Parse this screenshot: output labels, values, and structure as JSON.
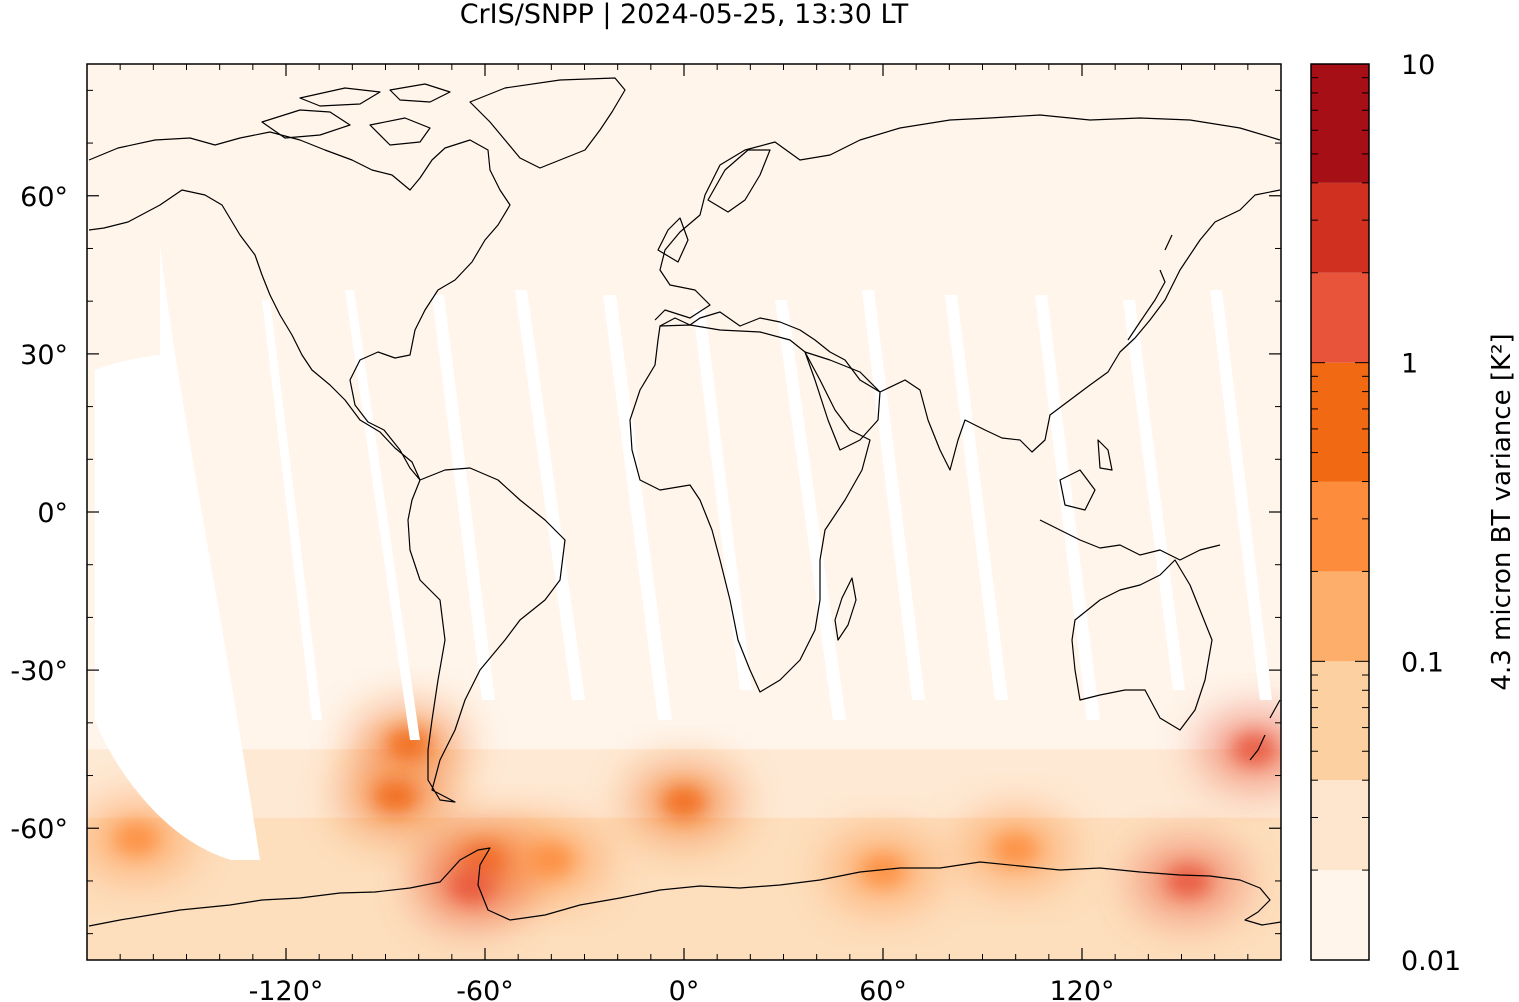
{
  "chart_data": {
    "type": "heatmap",
    "title": "CrIS/SNPP | 2024-05-25, 13:30 LT",
    "projection": "equirectangular",
    "xlim": [
      -180,
      180
    ],
    "ylim": [
      -85,
      85
    ],
    "x_ticks": [
      {
        "value": -120,
        "label": "-120°"
      },
      {
        "value": -60,
        "label": "-60°"
      },
      {
        "value": 0,
        "label": "0°"
      },
      {
        "value": 60,
        "label": "60°"
      },
      {
        "value": 120,
        "label": "120°"
      }
    ],
    "y_ticks": [
      {
        "value": 60,
        "label": "60°"
      },
      {
        "value": 30,
        "label": "30°"
      },
      {
        "value": 0,
        "label": "0°"
      },
      {
        "value": -30,
        "label": "-30°"
      },
      {
        "value": -60,
        "label": "-60°"
      }
    ],
    "colorbar": {
      "label": "4.3 micron BT variance [K²]",
      "scale": "log",
      "range": [
        0.01,
        10
      ],
      "tick_labels": [
        {
          "value": 10,
          "label": "10"
        },
        {
          "value": 1,
          "label": "1"
        },
        {
          "value": 0.1,
          "label": "0.1"
        },
        {
          "value": 0.01,
          "label": "0.01"
        }
      ],
      "levels": [
        0.01,
        0.02,
        0.04,
        0.1,
        0.2,
        0.4,
        1,
        2,
        4,
        10
      ],
      "colors": [
        "#fff5eb",
        "#fee6ce",
        "#fdd0a2",
        "#fdae6b",
        "#fd8d3c",
        "#f16913",
        "#e8543a",
        "#d03020",
        "#a50f15",
        "#8b0000"
      ]
    },
    "background_level": 0.02,
    "enhanced_regions": [
      {
        "lon": -83,
        "lat": -44,
        "value": 0.6
      },
      {
        "lon": -87,
        "lat": -54,
        "value": 0.8
      },
      {
        "lon": -60,
        "lat": -66,
        "value": 0.6
      },
      {
        "lon": -64,
        "lat": -71,
        "value": 1.0
      },
      {
        "lon": -40,
        "lat": -66,
        "value": 0.3
      },
      {
        "lon": 0,
        "lat": -55,
        "value": 0.8
      },
      {
        "lon": 152,
        "lat": -70,
        "value": 1.0
      },
      {
        "lon": 172,
        "lat": -45,
        "value": 1.0
      },
      {
        "lon": -165,
        "lat": -62,
        "value": 0.2
      },
      {
        "lon": 100,
        "lat": -64,
        "value": 0.2
      },
      {
        "lon": 60,
        "lat": -68,
        "value": 0.2
      }
    ]
  }
}
